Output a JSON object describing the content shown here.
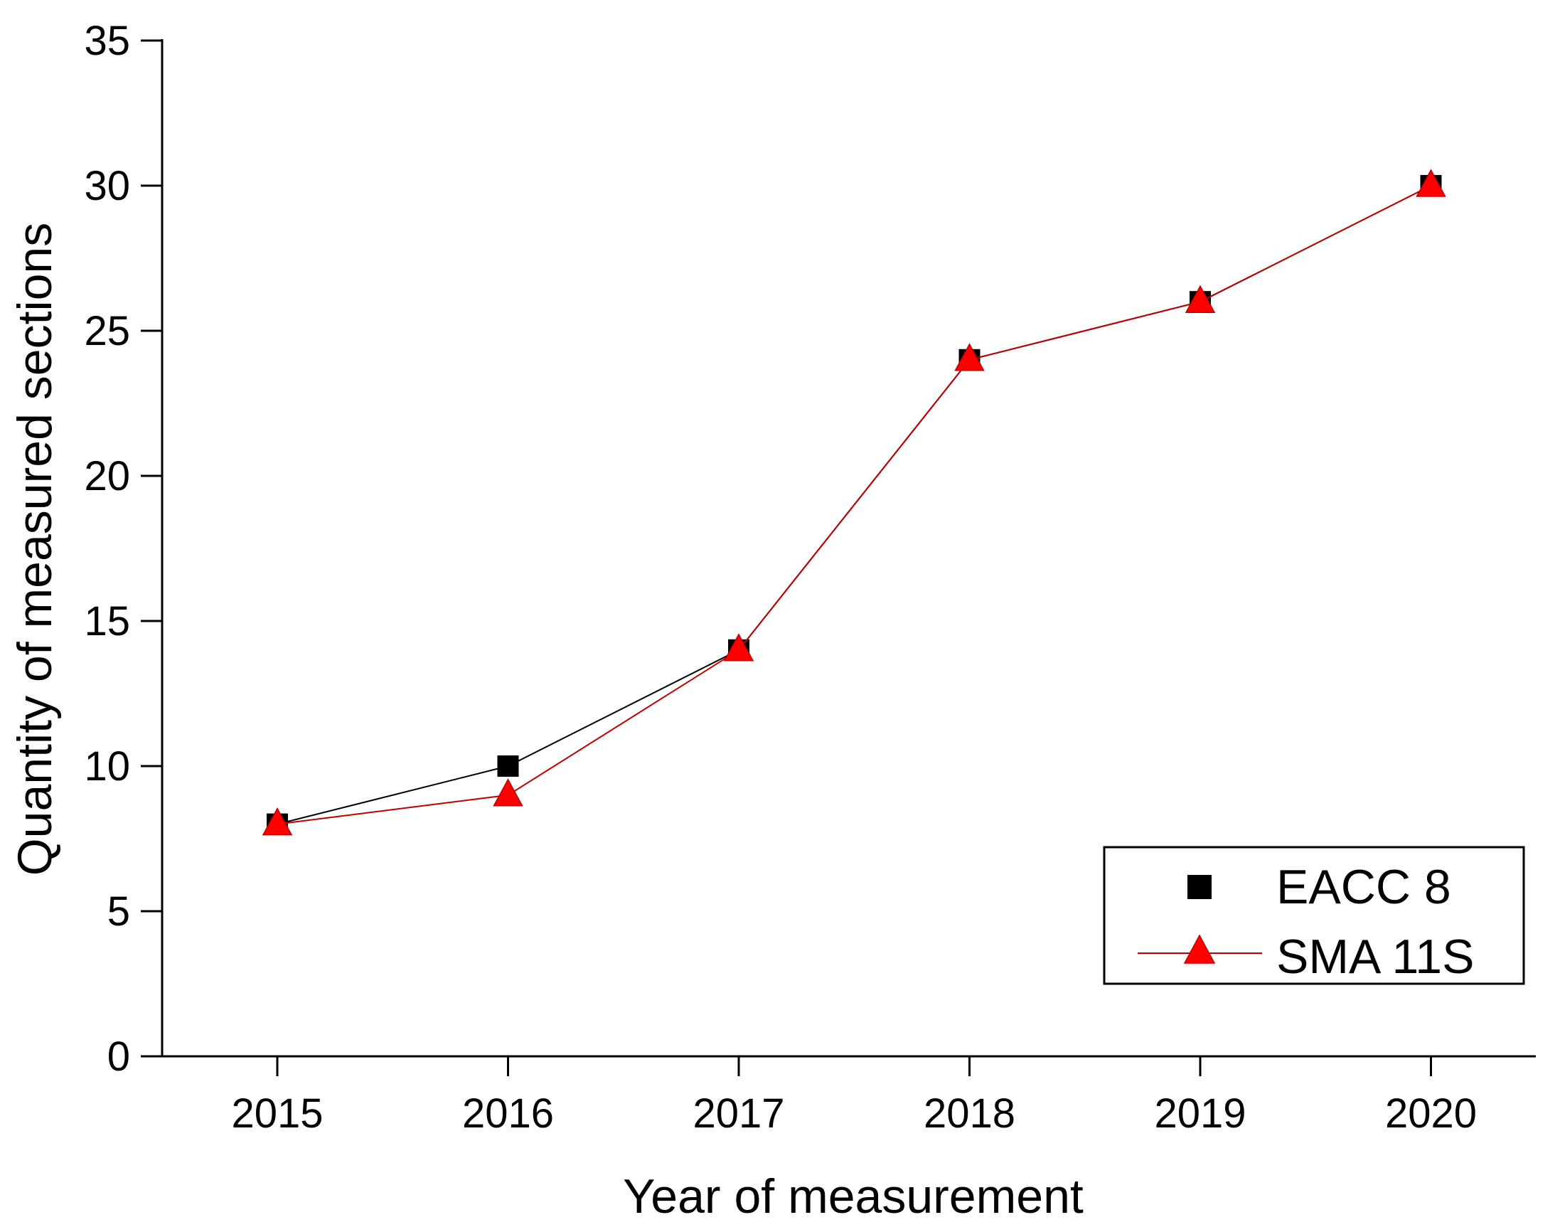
{
  "chart_data": {
    "type": "line",
    "title": "",
    "xlabel": "Year of measurement",
    "ylabel": "Quantity of measured sections",
    "categories": [
      "2015",
      "2016",
      "2017",
      "2018",
      "2019",
      "2020"
    ],
    "ylim": [
      0,
      35
    ],
    "yticks": [
      "0",
      "5",
      "10",
      "15",
      "20",
      "25",
      "30",
      "35"
    ],
    "grid": false,
    "legend_position": "bottom-right",
    "series": [
      {
        "name": "EACC 8",
        "marker": "square",
        "line_color": "#000000",
        "marker_color": "#000000",
        "values": [
          8,
          10,
          14,
          24,
          26,
          30
        ]
      },
      {
        "name": "SMA 11S",
        "marker": "triangle",
        "line_color": "#c00000",
        "marker_color": "#ff0000",
        "values": [
          8,
          9,
          14,
          24,
          26,
          30
        ]
      }
    ]
  }
}
